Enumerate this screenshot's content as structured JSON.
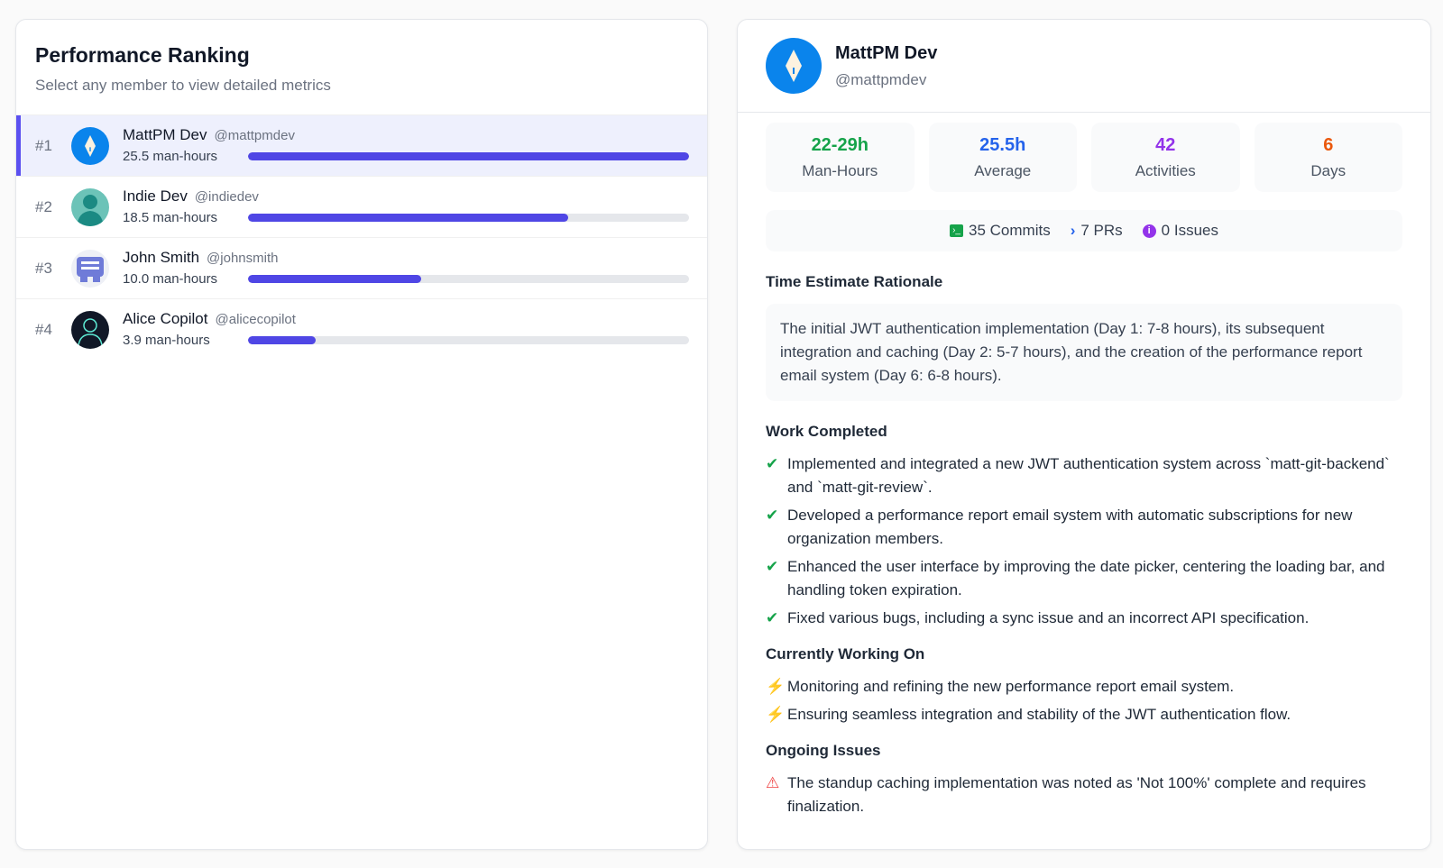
{
  "ranking": {
    "title": "Performance Ranking",
    "subtitle": "Select any member to view detailed metrics",
    "members": [
      {
        "rank": "#1",
        "name": "MattPM Dev",
        "handle": "@mattpmdev",
        "hours": "25.5 man-hours",
        "progress": 1.0,
        "avatar": "compass-avatar",
        "selected": true
      },
      {
        "rank": "#2",
        "name": "Indie Dev",
        "handle": "@indiedev",
        "hours": "18.5 man-hours",
        "progress": 0.725,
        "avatar": "person-silhouette-avatar"
      },
      {
        "rank": "#3",
        "name": "John Smith",
        "handle": "@johnsmith",
        "hours": "10.0 man-hours",
        "progress": 0.392,
        "avatar": "pixel-avatar"
      },
      {
        "rank": "#4",
        "name": "Alice Copilot",
        "handle": "@alicecopilot",
        "hours": "3.9 man-hours",
        "progress": 0.153,
        "avatar": "person-outline-avatar"
      }
    ]
  },
  "detail": {
    "name": "MattPM Dev",
    "handle": "@mattpmdev",
    "stats": [
      {
        "value": "22-29h",
        "label": "Man-Hours",
        "color": "#16a34a"
      },
      {
        "value": "25.5h",
        "label": "Average",
        "color": "#2563eb"
      },
      {
        "value": "42",
        "label": "Activities",
        "color": "#9333ea"
      },
      {
        "value": "6",
        "label": "Days",
        "color": "#ea580c"
      }
    ],
    "counts": {
      "commits": "35 Commits",
      "prs": "7 PRs",
      "issues": "0 Issues"
    },
    "rationale_title": "Time Estimate Rationale",
    "rationale": "The initial JWT authentication implementation (Day 1: 7-8 hours), its subsequent integration and caching (Day 2: 5-7 hours), and the creation of the performance report email system (Day 6: 6-8 hours).",
    "work_title": "Work Completed",
    "work": [
      "Implemented and integrated a new JWT authentication system across `matt-git-backend` and `matt-git-review`.",
      "Developed a performance report email system with automatic subscriptions for new organization members.",
      "Enhanced the user interface by improving the date picker, centering the loading bar, and handling token expiration.",
      "Fixed various bugs, including a sync issue and an incorrect API specification."
    ],
    "current_title": "Currently Working On",
    "current": [
      "Monitoring and refining the new performance report email system.",
      "Ensuring seamless integration and stability of the JWT authentication flow."
    ],
    "issues_title": "Ongoing Issues",
    "issues": [
      "The standup caching implementation was noted as 'Not 100%' complete and requires finalization."
    ]
  }
}
